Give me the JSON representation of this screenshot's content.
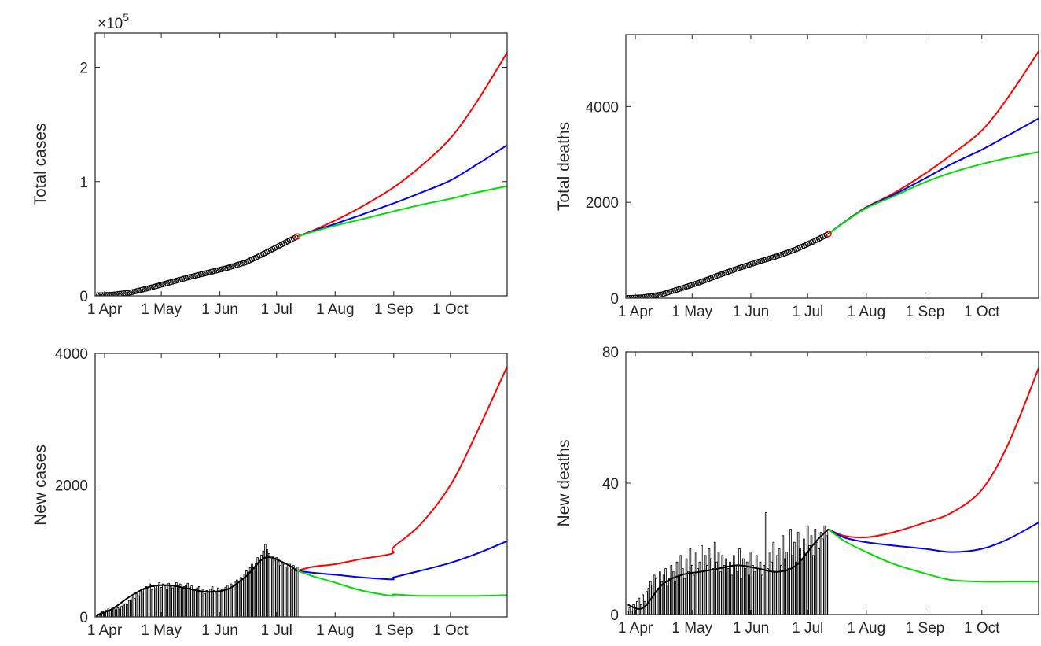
{
  "colors": {
    "scenario_high": "#ff0000",
    "scenario_mid": "#0000ff",
    "scenario_low": "#00dd00",
    "fit": "#000000",
    "observed_marker": "#000000",
    "bars_edge": "#000000"
  },
  "chart_data": [
    {
      "id": "total-cases",
      "type": "line",
      "xlabel": "",
      "ylabel": "Total cases",
      "y_multiplier": "×10",
      "y_multiplier_exp": "5",
      "x_tick_labels": [
        "1 Apr",
        "1 May",
        "1 Jun",
        "1 Jul",
        "1 Aug",
        "1 Sep",
        "1 Oct"
      ],
      "x_tick_dates": [
        "2020-04-01",
        "2020-05-01",
        "2020-06-01",
        "2020-07-01",
        "2020-08-01",
        "2020-09-01",
        "2020-10-01"
      ],
      "xlim": [
        "2020-03-27",
        "2020-10-31"
      ],
      "ylim": [
        0,
        230000
      ],
      "y_ticks": [
        0,
        100000,
        200000
      ],
      "y_tick_labels": [
        "0",
        "1",
        "2"
      ],
      "grid": false,
      "observed": {
        "dates": [
          "2020-03-28",
          "2020-04-05",
          "2020-04-15",
          "2020-04-25",
          "2020-05-05",
          "2020-05-15",
          "2020-05-25",
          "2020-06-05",
          "2020-06-15",
          "2020-06-25",
          "2020-07-05",
          "2020-07-12"
        ],
        "values": [
          500,
          1000,
          3000,
          7000,
          11500,
          16000,
          20000,
          24500,
          29500,
          37500,
          46000,
          52000
        ]
      },
      "series": [
        {
          "name": "",
          "color_key": "scenario_high",
          "dates": [
            "2020-07-12",
            "2020-07-20",
            "2020-08-01",
            "2020-08-15",
            "2020-09-01",
            "2020-09-15",
            "2020-10-01",
            "2020-10-15",
            "2020-10-31"
          ],
          "values": [
            52000,
            57000,
            66000,
            78000,
            95000,
            113000,
            138000,
            170000,
            213000
          ]
        },
        {
          "name": "",
          "color_key": "scenario_mid",
          "dates": [
            "2020-07-12",
            "2020-07-20",
            "2020-08-01",
            "2020-08-15",
            "2020-09-01",
            "2020-09-15",
            "2020-10-01",
            "2020-10-15",
            "2020-10-31"
          ],
          "values": [
            52000,
            56500,
            63000,
            71000,
            81000,
            90000,
            101000,
            115000,
            132000
          ]
        },
        {
          "name": "",
          "color_key": "scenario_low",
          "dates": [
            "2020-07-12",
            "2020-07-20",
            "2020-08-01",
            "2020-08-15",
            "2020-09-01",
            "2020-09-15",
            "2020-10-01",
            "2020-10-15",
            "2020-10-31"
          ],
          "values": [
            52000,
            56000,
            61500,
            67000,
            74000,
            79500,
            85000,
            90500,
            96000
          ]
        }
      ]
    },
    {
      "id": "total-deaths",
      "type": "line",
      "xlabel": "",
      "ylabel": "Total deaths",
      "x_tick_labels": [
        "1 Apr",
        "1 May",
        "1 Jun",
        "1 Jul",
        "1 Aug",
        "1 Sep",
        "1 Oct"
      ],
      "x_tick_dates": [
        "2020-04-01",
        "2020-05-01",
        "2020-06-01",
        "2020-07-01",
        "2020-08-01",
        "2020-09-01",
        "2020-10-01"
      ],
      "xlim": [
        "2020-03-27",
        "2020-10-31"
      ],
      "ylim": [
        0,
        5500
      ],
      "y_ticks": [
        0,
        2000,
        4000
      ],
      "y_tick_labels": [
        "0",
        "2000",
        "4000"
      ],
      "grid": false,
      "observed": {
        "dates": [
          "2020-03-28",
          "2020-04-05",
          "2020-04-15",
          "2020-04-25",
          "2020-05-05",
          "2020-05-15",
          "2020-05-25",
          "2020-06-05",
          "2020-06-15",
          "2020-06-25",
          "2020-07-05",
          "2020-07-12"
        ],
        "values": [
          5,
          20,
          80,
          200,
          330,
          480,
          620,
          760,
          880,
          1020,
          1200,
          1340
        ]
      },
      "series": [
        {
          "name": "",
          "color_key": "scenario_high",
          "dates": [
            "2020-07-12",
            "2020-07-20",
            "2020-08-01",
            "2020-08-15",
            "2020-09-01",
            "2020-09-15",
            "2020-10-01",
            "2020-10-15",
            "2020-10-31"
          ],
          "values": [
            1340,
            1580,
            1900,
            2180,
            2600,
            3000,
            3500,
            4200,
            5150
          ]
        },
        {
          "name": "",
          "color_key": "scenario_mid",
          "dates": [
            "2020-07-12",
            "2020-07-20",
            "2020-08-01",
            "2020-08-15",
            "2020-09-01",
            "2020-09-15",
            "2020-10-01",
            "2020-10-15",
            "2020-10-31"
          ],
          "values": [
            1340,
            1580,
            1890,
            2150,
            2500,
            2800,
            3100,
            3400,
            3750
          ]
        },
        {
          "name": "",
          "color_key": "scenario_low",
          "dates": [
            "2020-07-12",
            "2020-07-20",
            "2020-08-01",
            "2020-08-15",
            "2020-09-01",
            "2020-09-15",
            "2020-10-01",
            "2020-10-15",
            "2020-10-31"
          ],
          "values": [
            1340,
            1575,
            1880,
            2120,
            2420,
            2620,
            2800,
            2930,
            3050
          ]
        }
      ]
    },
    {
      "id": "new-cases",
      "type": "bar",
      "xlabel": "",
      "ylabel": "New cases",
      "x_tick_labels": [
        "1 Apr",
        "1 May",
        "1 Jun",
        "1 Jul",
        "1 Aug",
        "1 Sep",
        "1 Oct"
      ],
      "x_tick_dates": [
        "2020-04-01",
        "2020-05-01",
        "2020-06-01",
        "2020-07-01",
        "2020-08-01",
        "2020-09-01",
        "2020-10-01"
      ],
      "xlim": [
        "2020-03-27",
        "2020-10-31"
      ],
      "ylim": [
        0,
        4000
      ],
      "y_ticks": [
        0,
        2000,
        4000
      ],
      "y_tick_labels": [
        "0",
        "2000",
        "4000"
      ],
      "grid": false,
      "bars": {
        "start_date": "2020-03-28",
        "values": [
          20,
          40,
          60,
          80,
          70,
          100,
          120,
          90,
          130,
          150,
          110,
          140,
          120,
          160,
          180,
          200,
          190,
          250,
          260,
          300,
          280,
          350,
          320,
          400,
          380,
          420,
          460,
          440,
          500,
          410,
          460,
          430,
          480,
          520,
          450,
          500,
          470,
          420,
          510,
          460,
          440,
          480,
          520,
          470,
          500,
          430,
          460,
          480,
          510,
          440,
          470,
          420,
          400,
          440,
          460,
          380,
          420,
          350,
          400,
          380,
          420,
          460,
          400,
          360,
          440,
          380,
          420,
          400,
          450,
          480,
          420,
          500,
          460,
          540,
          560,
          520,
          600,
          580,
          650,
          700,
          680,
          750,
          800,
          760,
          820,
          900,
          860,
          940,
          1000,
          1100,
          1020,
          960,
          880,
          920,
          860,
          900,
          840,
          780,
          820,
          800,
          760,
          790,
          800,
          720,
          780,
          700,
          760
        ]
      },
      "fit": {
        "dates": [
          "2020-03-28",
          "2020-04-05",
          "2020-04-15",
          "2020-04-25",
          "2020-05-05",
          "2020-05-15",
          "2020-05-25",
          "2020-06-05",
          "2020-06-15",
          "2020-06-25",
          "2020-07-05",
          "2020-07-12"
        ],
        "values": [
          30,
          120,
          320,
          460,
          480,
          430,
          380,
          420,
          620,
          900,
          820,
          700
        ]
      },
      "series": [
        {
          "name": "",
          "color_key": "scenario_high",
          "dates": [
            "2020-07-12",
            "2020-07-20",
            "2020-08-01",
            "2020-08-15",
            "2020-08-31",
            "2020-09-01",
            "2020-09-15",
            "2020-10-01",
            "2020-10-15",
            "2020-10-31"
          ],
          "values": [
            700,
            760,
            800,
            880,
            960,
            1060,
            1400,
            2000,
            2800,
            3800
          ]
        },
        {
          "name": "",
          "color_key": "scenario_mid",
          "dates": [
            "2020-07-12",
            "2020-07-20",
            "2020-08-01",
            "2020-08-15",
            "2020-08-31",
            "2020-09-01",
            "2020-09-15",
            "2020-10-01",
            "2020-10-15",
            "2020-10-31"
          ],
          "values": [
            700,
            670,
            640,
            600,
            570,
            600,
            700,
            820,
            960,
            1150
          ]
        },
        {
          "name": "",
          "color_key": "scenario_low",
          "dates": [
            "2020-07-12",
            "2020-07-20",
            "2020-08-01",
            "2020-08-15",
            "2020-08-31",
            "2020-09-01",
            "2020-09-15",
            "2020-10-01",
            "2020-10-15",
            "2020-10-31"
          ],
          "values": [
            700,
            620,
            520,
            400,
            320,
            340,
            320,
            320,
            320,
            330
          ]
        }
      ]
    },
    {
      "id": "new-deaths",
      "type": "bar",
      "xlabel": "",
      "ylabel": "New deaths",
      "x_tick_labels": [
        "1 Apr",
        "1 May",
        "1 Jun",
        "1 Jul",
        "1 Aug",
        "1 Sep",
        "1 Oct"
      ],
      "x_tick_dates": [
        "2020-04-01",
        "2020-05-01",
        "2020-06-01",
        "2020-07-01",
        "2020-08-01",
        "2020-09-01",
        "2020-10-01"
      ],
      "xlim": [
        "2020-03-27",
        "2020-10-31"
      ],
      "ylim": [
        0,
        80
      ],
      "y_ticks": [
        0,
        40,
        80
      ],
      "y_tick_labels": [
        "0",
        "40",
        "80"
      ],
      "grid": false,
      "bars": {
        "start_date": "2020-03-28",
        "values": [
          1,
          2,
          1,
          3,
          2,
          4,
          5,
          3,
          6,
          4,
          7,
          8,
          10,
          9,
          12,
          11,
          8,
          13,
          10,
          12,
          14,
          9,
          11,
          15,
          13,
          10,
          16,
          12,
          18,
          14,
          11,
          17,
          13,
          20,
          15,
          12,
          19,
          14,
          16,
          21,
          13,
          18,
          15,
          20,
          17,
          14,
          22,
          16,
          19,
          13,
          18,
          15,
          17,
          14,
          16,
          12,
          18,
          15,
          13,
          20,
          11,
          17,
          14,
          16,
          12,
          19,
          15,
          13,
          18,
          14,
          16,
          12,
          15,
          31,
          14,
          19,
          16,
          22,
          13,
          18,
          20,
          15,
          24,
          17,
          19,
          14,
          26,
          18,
          22,
          16,
          25,
          20,
          17,
          23,
          19,
          27,
          21,
          24,
          18,
          26,
          22,
          20,
          25,
          23,
          27,
          24,
          26
        ]
      },
      "fit": {
        "dates": [
          "2020-03-28",
          "2020-04-05",
          "2020-04-15",
          "2020-04-25",
          "2020-05-05",
          "2020-05-15",
          "2020-05-25",
          "2020-06-05",
          "2020-06-15",
          "2020-06-25",
          "2020-07-05",
          "2020-07-12"
        ],
        "values": [
          3,
          2,
          9,
          12,
          13,
          14,
          15,
          14,
          13,
          15,
          22,
          26
        ]
      },
      "series": [
        {
          "name": "",
          "color_key": "scenario_high",
          "dates": [
            "2020-07-12",
            "2020-07-20",
            "2020-08-01",
            "2020-08-15",
            "2020-09-01",
            "2020-09-15",
            "2020-10-01",
            "2020-10-15",
            "2020-10-31"
          ],
          "values": [
            26,
            24,
            23.5,
            25,
            28,
            31,
            38,
            52,
            75
          ]
        },
        {
          "name": "",
          "color_key": "scenario_mid",
          "dates": [
            "2020-07-12",
            "2020-07-20",
            "2020-08-01",
            "2020-08-15",
            "2020-09-01",
            "2020-09-15",
            "2020-10-01",
            "2020-10-15",
            "2020-10-31"
          ],
          "values": [
            26,
            23.5,
            22,
            21,
            20,
            19,
            20,
            23,
            28
          ]
        },
        {
          "name": "",
          "color_key": "scenario_low",
          "dates": [
            "2020-07-12",
            "2020-07-20",
            "2020-08-01",
            "2020-08-15",
            "2020-09-01",
            "2020-09-15",
            "2020-10-01",
            "2020-10-15",
            "2020-10-31"
          ],
          "values": [
            26,
            22.5,
            19,
            15.5,
            12.5,
            10.5,
            10,
            10,
            10
          ]
        }
      ]
    }
  ]
}
